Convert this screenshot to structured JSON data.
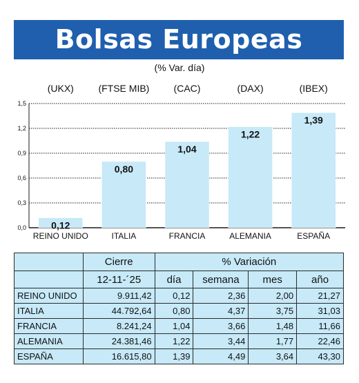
{
  "title": "Bolsas Europeas",
  "subtitle": "(% Var. día)",
  "chart_data": {
    "type": "bar",
    "categories": [
      "REINO UNIDO",
      "ITALIA",
      "FRANCIA",
      "ALEMANIA",
      "ESPAÑA"
    ],
    "index_codes": [
      "(UKX)",
      "(FTSE MIB)",
      "(CAC)",
      "(DAX)",
      "(IBEX)"
    ],
    "values": [
      0.12,
      0.8,
      1.04,
      1.22,
      1.39
    ],
    "value_labels": [
      "0,12",
      "0,80",
      "1,04",
      "1,22",
      "1,39"
    ],
    "ylim": [
      0,
      1.5
    ],
    "yticks": [
      0,
      0.3,
      0.6,
      0.9,
      1.2,
      1.5
    ],
    "ytick_labels": [
      "0,0",
      "0,3",
      "0,6",
      "0,9",
      "1,2",
      "1,5"
    ],
    "bar_color": "#c7e9f8",
    "grid": true
  },
  "table": {
    "header_cierre": "Cierre",
    "header_variacion": "% Variación",
    "date": "12-11-´25",
    "col_dia": "día",
    "col_semana": "semana",
    "col_mes": "mes",
    "col_ano": "año",
    "rows": [
      {
        "name": "REINO UNIDO",
        "cierre": "9.911,42",
        "dia": "0,12",
        "semana": "2,36",
        "mes": "2,00",
        "ano": "21,27"
      },
      {
        "name": "ITALIA",
        "cierre": "44.792,64",
        "dia": "0,80",
        "semana": "4,37",
        "mes": "3,75",
        "ano": "31,03"
      },
      {
        "name": "FRANCIA",
        "cierre": "8.241,24",
        "dia": "1,04",
        "semana": "3,66",
        "mes": "1,48",
        "ano": "11,66"
      },
      {
        "name": "ALEMANIA",
        "cierre": "24.381,46",
        "dia": "1,22",
        "semana": "3,44",
        "mes": "1,77",
        "ano": "22,46"
      },
      {
        "name": "ESPAÑA",
        "cierre": "16.615,80",
        "dia": "1,39",
        "semana": "4,49",
        "mes": "3,64",
        "ano": "43,30"
      }
    ]
  },
  "colors": {
    "title_bg": "#1f5fae",
    "table_bg": "#c7e9f8"
  }
}
